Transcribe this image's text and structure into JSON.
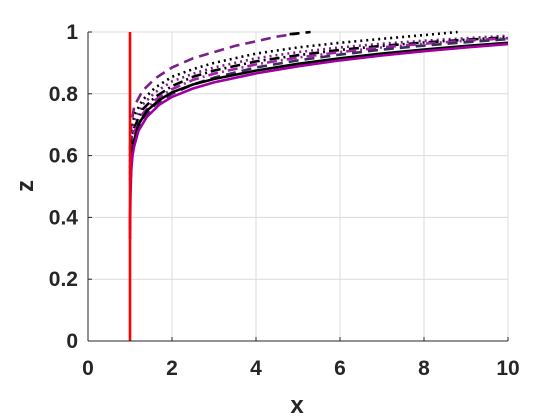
{
  "chart_data": {
    "type": "line",
    "title": "",
    "xlabel": "x",
    "ylabel": "z",
    "xlim": [
      0,
      10
    ],
    "ylim": [
      0,
      1
    ],
    "x_ticks": [
      0,
      2,
      4,
      6,
      8,
      10
    ],
    "x_tick_labels": [
      "0",
      "2",
      "4",
      "6",
      "8",
      "10"
    ],
    "y_ticks": [
      0,
      0.2,
      0.4,
      0.6,
      0.8,
      1
    ],
    "y_tick_labels": [
      "0",
      "0.2",
      "0.4",
      "0.6",
      "0.8",
      "1"
    ],
    "grid": true,
    "legend": "none",
    "series": [
      {
        "color": "#7a1f8c",
        "dash": "dashed",
        "x": [
          1.0,
          1.03,
          1.1,
          1.3,
          1.6,
          2,
          2.5,
          3,
          3.5,
          4,
          4.5,
          5
        ],
        "y": [
          0.62,
          0.7,
          0.76,
          0.81,
          0.85,
          0.885,
          0.915,
          0.935,
          0.955,
          0.97,
          0.985,
          0.995
        ]
      },
      {
        "color": "#000000",
        "dash": "dashed",
        "x": [
          4.8,
          5.3
        ],
        "y": [
          0.993,
          1.0
        ]
      },
      {
        "color": "#000000",
        "dash": "dotted",
        "x": [
          1.0,
          1.03,
          1.1,
          1.3,
          1.6,
          2,
          2.5,
          3,
          4,
          5,
          6,
          7,
          8,
          8.8
        ],
        "y": [
          0.6,
          0.67,
          0.73,
          0.78,
          0.82,
          0.855,
          0.88,
          0.9,
          0.93,
          0.95,
          0.965,
          0.978,
          0.99,
          1.0
        ]
      },
      {
        "color": "#7a1f8c",
        "dash": "dotted",
        "x": [
          1.0,
          1.03,
          1.1,
          1.3,
          1.6,
          2,
          2.5,
          3,
          4,
          5,
          6,
          7,
          8,
          9,
          10
        ],
        "y": [
          0.58,
          0.65,
          0.71,
          0.765,
          0.805,
          0.84,
          0.865,
          0.885,
          0.915,
          0.935,
          0.95,
          0.962,
          0.972,
          0.98,
          0.988
        ]
      },
      {
        "color": "#000000",
        "dash": "dashdot",
        "x": [
          1.0,
          1.03,
          1.1,
          1.3,
          1.6,
          2,
          2.5,
          3,
          4,
          5,
          6,
          7,
          8,
          9,
          10
        ],
        "y": [
          0.56,
          0.63,
          0.69,
          0.75,
          0.79,
          0.825,
          0.855,
          0.875,
          0.905,
          0.925,
          0.942,
          0.955,
          0.966,
          0.975,
          0.983
        ]
      },
      {
        "color": "#a020a8",
        "dash": "dashdot",
        "x": [
          1.0,
          1.03,
          1.1,
          1.3,
          1.6,
          2,
          2.5,
          3,
          4,
          5,
          6,
          7,
          8,
          9,
          10
        ],
        "y": [
          0.54,
          0.61,
          0.675,
          0.735,
          0.78,
          0.815,
          0.845,
          0.865,
          0.895,
          0.917,
          0.935,
          0.95,
          0.962,
          0.972,
          0.98
        ]
      },
      {
        "color": "#3d2b5c",
        "dash": "dashed",
        "x": [
          1.0,
          1.03,
          1.1,
          1.3,
          1.6,
          2,
          2.5,
          3,
          4,
          5,
          6,
          7,
          8,
          9,
          10
        ],
        "y": [
          0.52,
          0.595,
          0.66,
          0.72,
          0.765,
          0.8,
          0.83,
          0.852,
          0.885,
          0.908,
          0.927,
          0.943,
          0.956,
          0.967,
          0.977
        ]
      },
      {
        "color": "#000000",
        "dash": "solid",
        "x": [
          1.0,
          1.01,
          1.03,
          1.06,
          1.1,
          1.2,
          1.4,
          1.7,
          2,
          2.5,
          3,
          4,
          5,
          6,
          7,
          8,
          9,
          10
        ],
        "y": [
          0.36,
          0.5,
          0.575,
          0.62,
          0.65,
          0.7,
          0.745,
          0.78,
          0.805,
          0.83,
          0.848,
          0.875,
          0.897,
          0.915,
          0.93,
          0.943,
          0.955,
          0.965
        ]
      },
      {
        "color": "#a000a0",
        "dash": "solid",
        "x": [
          1.0,
          1.01,
          1.03,
          1.06,
          1.1,
          1.2,
          1.4,
          1.7,
          2,
          2.5,
          3,
          4,
          5,
          6,
          7,
          8,
          9,
          10
        ],
        "y": [
          0.33,
          0.47,
          0.555,
          0.6,
          0.63,
          0.68,
          0.725,
          0.765,
          0.79,
          0.817,
          0.837,
          0.866,
          0.889,
          0.908,
          0.924,
          0.938,
          0.95,
          0.961
        ]
      },
      {
        "color": "#ff0000",
        "dash": "solid",
        "x": [
          1.0,
          1.0
        ],
        "y": [
          0.0,
          1.0
        ]
      }
    ]
  }
}
